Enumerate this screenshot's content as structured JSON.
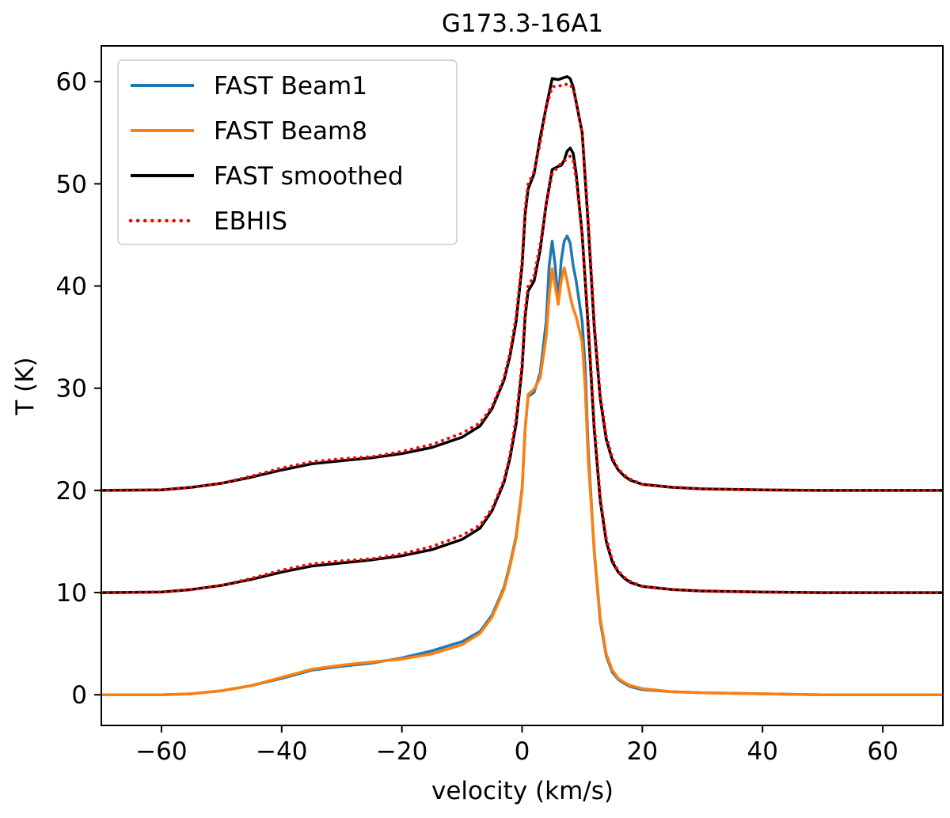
{
  "chart_data": {
    "type": "line",
    "title": "G173.3-16A1",
    "xlabel": "velocity (km/s)",
    "ylabel": "T (K)",
    "xlim": [
      -70,
      70
    ],
    "ylim": [
      -3,
      63.5
    ],
    "xticks": [
      -60,
      -40,
      -20,
      0,
      20,
      40,
      60
    ],
    "xtick_labels": [
      "−60",
      "−40",
      "−20",
      "0",
      "20",
      "40",
      "60"
    ],
    "yticks": [
      0,
      10,
      20,
      30,
      40,
      50,
      60
    ],
    "ytick_labels": [
      "0",
      "10",
      "20",
      "30",
      "40",
      "50",
      "60"
    ],
    "grid": false,
    "legend_position": "top-left",
    "legend": [
      {
        "label": "FAST Beam1",
        "color": "#1f77b4",
        "style": "solid"
      },
      {
        "label": "FAST Beam8",
        "color": "#ff7f0e",
        "style": "solid"
      },
      {
        "label": "FAST smoothed",
        "color": "#000000",
        "style": "solid"
      },
      {
        "label": "EBHIS",
        "color": "#ff0000",
        "style": "dotted"
      }
    ],
    "series": [
      {
        "name": "FAST Beam1",
        "color": "#1f77b4",
        "style": "solid",
        "offset": 0,
        "x": [
          -70,
          -60,
          -55,
          -50,
          -45,
          -40,
          -35,
          -30,
          -25,
          -20,
          -15,
          -10,
          -7,
          -5,
          -3,
          -2,
          -1,
          0,
          0.5,
          1,
          2,
          3,
          4,
          4.5,
          5,
          5.5,
          6,
          6.5,
          7,
          7.5,
          8,
          8.5,
          9,
          10,
          10.5,
          11,
          12,
          13,
          14,
          15,
          16,
          17,
          18,
          20,
          25,
          30,
          40,
          50,
          60,
          70
        ],
        "y": [
          0,
          0,
          0.1,
          0.4,
          0.9,
          1.6,
          2.4,
          2.8,
          3.1,
          3.6,
          4.3,
          5.2,
          6.2,
          7.8,
          10.5,
          12.8,
          15.5,
          20.2,
          26,
          29.2,
          29.6,
          31.5,
          36.5,
          42,
          44.4,
          42,
          38.5,
          42.5,
          44.4,
          44.9,
          44.2,
          42,
          40.5,
          36.5,
          32,
          24,
          14,
          7.2,
          3.8,
          2.2,
          1.5,
          1.1,
          0.8,
          0.5,
          0.3,
          0.2,
          0.1,
          0,
          0,
          0
        ]
      },
      {
        "name": "FAST Beam8",
        "color": "#ff7f0e",
        "style": "solid",
        "offset": 0,
        "x": [
          -70,
          -60,
          -55,
          -50,
          -45,
          -40,
          -35,
          -30,
          -25,
          -20,
          -15,
          -10,
          -7,
          -5,
          -3,
          -2,
          -1,
          0,
          0.5,
          1,
          2,
          3,
          4,
          4.5,
          5,
          5.5,
          6,
          6.5,
          7,
          7.5,
          8,
          8.5,
          9,
          10,
          10.5,
          11,
          12,
          13,
          14,
          15,
          16,
          17,
          18,
          20,
          25,
          30,
          40,
          50,
          60,
          70
        ],
        "y": [
          0,
          0,
          0.1,
          0.4,
          0.9,
          1.7,
          2.5,
          2.9,
          3.2,
          3.5,
          4.0,
          4.9,
          6.0,
          7.6,
          10.3,
          12.6,
          15.3,
          20,
          26,
          29.4,
          29.9,
          31,
          35,
          39,
          41.7,
          40,
          38.2,
          40.5,
          41.8,
          40.5,
          39,
          37.8,
          37,
          34.5,
          30,
          23,
          14.2,
          7.5,
          4.0,
          2.4,
          1.6,
          1.2,
          0.9,
          0.6,
          0.3,
          0.2,
          0.1,
          0,
          0,
          0
        ]
      },
      {
        "name": "FAST smoothed",
        "color": "#000000",
        "style": "solid",
        "offset": 10,
        "x": [
          -70,
          -60,
          -55,
          -50,
          -45,
          -40,
          -35,
          -30,
          -25,
          -20,
          -15,
          -10,
          -7,
          -5,
          -3,
          -2,
          -1,
          0,
          0.5,
          1,
          2,
          3,
          4,
          5,
          6,
          6.5,
          7,
          7.5,
          8,
          8.5,
          9,
          10,
          11,
          12,
          13,
          14,
          15,
          16,
          17,
          18,
          20,
          25,
          30,
          40,
          50,
          60,
          70
        ],
        "y": [
          0,
          0.05,
          0.3,
          0.7,
          1.3,
          2.0,
          2.6,
          2.9,
          3.2,
          3.6,
          4.2,
          5.2,
          6.3,
          8.0,
          10.8,
          13.2,
          16.5,
          22,
          27,
          29.5,
          30.5,
          33.5,
          38,
          41.4,
          41.7,
          41.8,
          42.3,
          43.2,
          43.5,
          43,
          41,
          35,
          26,
          16,
          9,
          5,
          3,
          2,
          1.4,
          1,
          0.6,
          0.3,
          0.15,
          0.05,
          0,
          0,
          0
        ]
      },
      {
        "name": "EBHIS",
        "color": "#ff0000",
        "style": "dotted",
        "offset": 10,
        "x": [
          -70,
          -60,
          -55,
          -50,
          -45,
          -40,
          -35,
          -30,
          -25,
          -20,
          -15,
          -10,
          -7,
          -5,
          -3,
          -2,
          -1,
          0,
          0.5,
          1,
          2,
          3,
          4,
          5,
          6,
          6.5,
          7,
          7.5,
          8,
          8.5,
          9,
          10,
          11,
          12,
          13,
          14,
          15,
          16,
          17,
          18,
          20,
          25,
          30,
          40,
          50,
          60,
          70
        ],
        "y": [
          0,
          0.05,
          0.3,
          0.7,
          1.4,
          2.2,
          2.8,
          3.1,
          3.3,
          3.8,
          4.5,
          5.6,
          6.6,
          8.2,
          11,
          13.5,
          17,
          22.5,
          27.5,
          30,
          31,
          34,
          38,
          41,
          41.7,
          42,
          42.2,
          42.5,
          42.7,
          42.3,
          40.5,
          35,
          26.5,
          16.5,
          9.3,
          5.3,
          3.2,
          2.1,
          1.5,
          1.1,
          0.6,
          0.3,
          0.15,
          0.05,
          0,
          0,
          0
        ]
      },
      {
        "name": "FAST smoothed",
        "color": "#000000",
        "style": "solid",
        "offset": 20,
        "x": [
          -70,
          -60,
          -55,
          -50,
          -45,
          -40,
          -35,
          -30,
          -25,
          -20,
          -15,
          -10,
          -7,
          -5,
          -3,
          -2,
          -1,
          0,
          0.5,
          1,
          2,
          3,
          4,
          5,
          6,
          6.5,
          7,
          7.5,
          8,
          8.5,
          9,
          10,
          11,
          12,
          13,
          14,
          15,
          16,
          17,
          18,
          20,
          25,
          30,
          40,
          50,
          60,
          70
        ],
        "y": [
          0,
          0.05,
          0.3,
          0.7,
          1.3,
          2.0,
          2.6,
          2.9,
          3.2,
          3.6,
          4.2,
          5.2,
          6.3,
          8.0,
          10.8,
          13.2,
          16.5,
          22,
          27,
          29.5,
          31,
          34.5,
          37.5,
          40.3,
          40.2,
          40.3,
          40.4,
          40.5,
          40.3,
          39.5,
          38,
          35,
          26,
          16,
          9,
          5,
          3,
          2,
          1.4,
          1,
          0.6,
          0.3,
          0.15,
          0.05,
          0,
          0,
          0
        ]
      },
      {
        "name": "EBHIS",
        "color": "#ff0000",
        "style": "dotted",
        "offset": 20,
        "x": [
          -70,
          -60,
          -55,
          -50,
          -45,
          -40,
          -35,
          -30,
          -25,
          -20,
          -15,
          -10,
          -7,
          -5,
          -3,
          -2,
          -1,
          0,
          0.5,
          1,
          2,
          3,
          4,
          5,
          6,
          6.5,
          7,
          7.5,
          8,
          8.5,
          9,
          10,
          11,
          12,
          13,
          14,
          15,
          16,
          17,
          18,
          20,
          25,
          30,
          40,
          50,
          60,
          70
        ],
        "y": [
          0,
          0.05,
          0.3,
          0.7,
          1.4,
          2.2,
          2.8,
          3.1,
          3.3,
          3.8,
          4.5,
          5.6,
          6.6,
          8.2,
          11,
          13.5,
          17,
          22.5,
          27.5,
          30,
          31.2,
          34,
          37.5,
          39.5,
          39.6,
          39.6,
          39.6,
          39.8,
          39.7,
          39.3,
          38,
          35,
          26.5,
          16.5,
          9.3,
          5.3,
          3.2,
          2.1,
          1.5,
          1.1,
          0.6,
          0.3,
          0.15,
          0.05,
          0,
          0,
          0
        ]
      }
    ]
  }
}
